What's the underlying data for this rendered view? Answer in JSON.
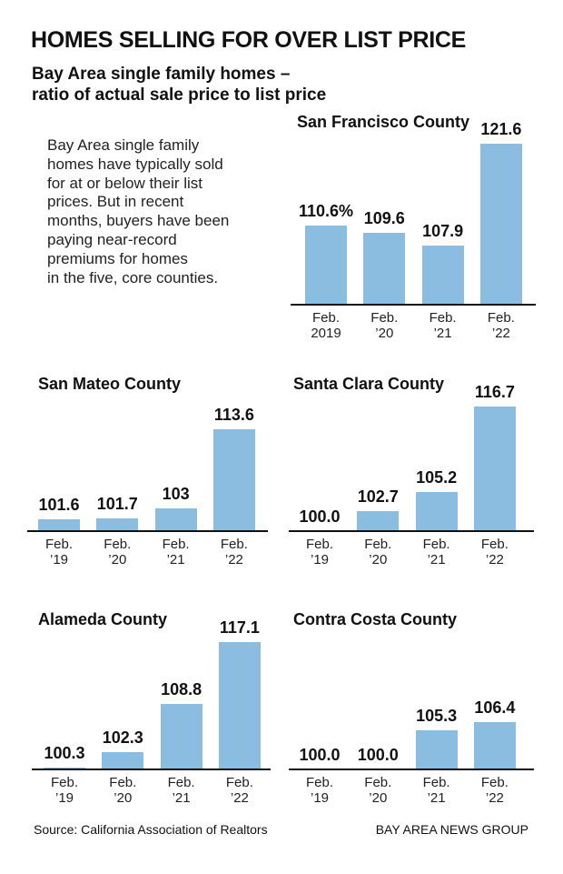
{
  "title": "HOMES SELLING FOR OVER LIST PRICE",
  "subtitle": "Bay Area single family homes –\nratio of actual sale price to list price",
  "description": "Bay Area single family\nhomes have typically sold\nfor at or below their list\nprices. But in recent\nmonths, buyers have been\npaying near-record\npremiums for homes\nin the five, core counties.",
  "source": "Source: California Association of Realtors",
  "credit": "BAY AREA NEWS GROUP",
  "chart_data": [
    {
      "type": "bar",
      "title": "San Francisco County",
      "categories": [
        "Feb.\n2019",
        "Feb.\n’20",
        "Feb.\n’21",
        "Feb.\n’22"
      ],
      "values": [
        110.6,
        109.6,
        107.9,
        121.6
      ],
      "value_labels": [
        "110.6%",
        "109.6",
        "107.9",
        "121.6"
      ],
      "color": "#8bbde1",
      "ylim": [
        100,
        125
      ]
    },
    {
      "type": "bar",
      "title": "San Mateo County",
      "categories": [
        "Feb.\n’19",
        "Feb.\n’20",
        "Feb.\n’21",
        "Feb.\n’22"
      ],
      "values": [
        101.6,
        101.7,
        103,
        113.6
      ],
      "color": "#8bbde1",
      "ylim": [
        100,
        125
      ]
    },
    {
      "type": "bar",
      "title": "Santa Clara County",
      "categories": [
        "Feb.\n’19",
        "Feb.\n’20",
        "Feb.\n’21",
        "Feb.\n’22"
      ],
      "values": [
        100,
        102.7,
        105.2,
        116.7
      ],
      "value_labels": [
        "100.0",
        "102.7",
        "105.2",
        "116.7"
      ],
      "color": "#8bbde1",
      "ylim": [
        100,
        125
      ]
    },
    {
      "type": "bar",
      "title": "Alameda County",
      "categories": [
        "Feb.\n’19",
        "Feb.\n’20",
        "Feb.\n’21",
        "Feb.\n’22"
      ],
      "values": [
        100.3,
        102.3,
        108.8,
        117.1
      ],
      "color": "#8bbde1",
      "ylim": [
        100,
        125
      ]
    },
    {
      "type": "bar",
      "title": "Contra Costa County",
      "categories": [
        "Feb.\n’19",
        "Feb.\n’20",
        "Feb.\n’21",
        "Feb.\n’22"
      ],
      "values": [
        100,
        100,
        105.3,
        106.4
      ],
      "value_labels": [
        "100.0",
        "100.0",
        "105.3",
        "106.4"
      ],
      "color": "#8bbde1",
      "ylim": [
        100,
        125
      ]
    }
  ]
}
